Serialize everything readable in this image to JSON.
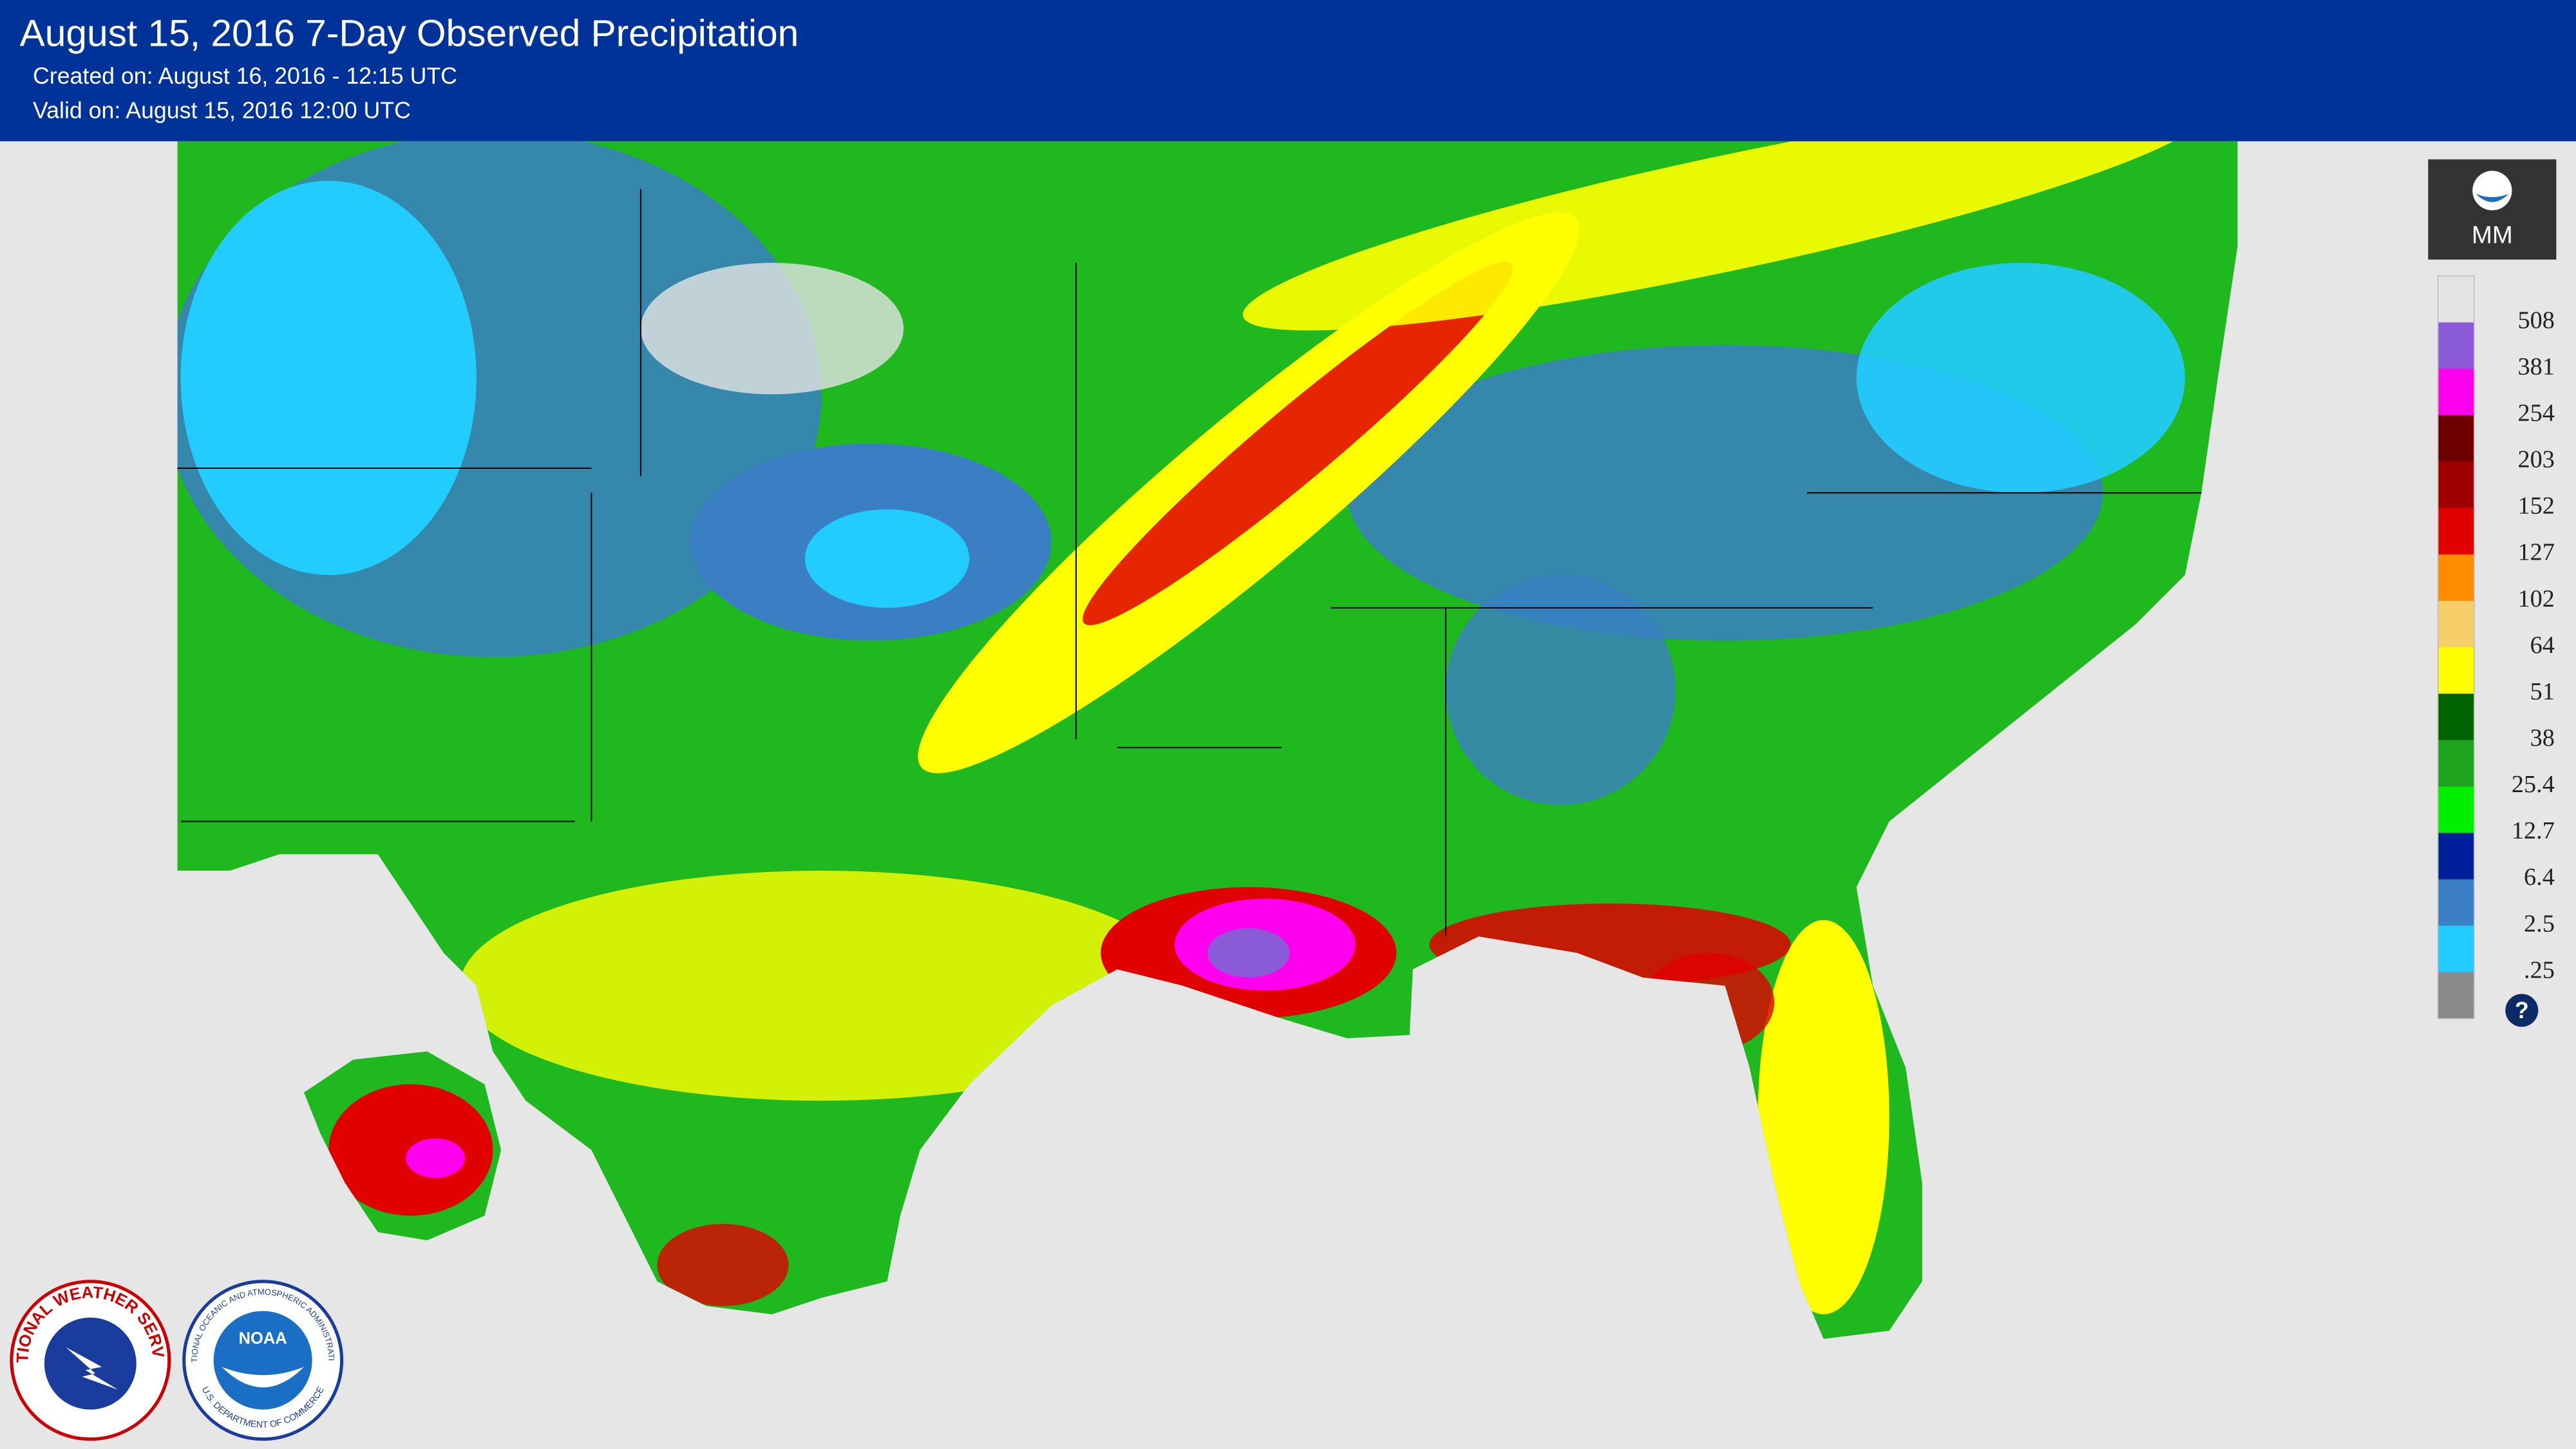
{
  "header": {
    "title": "August 15, 2016 7-Day Observed Precipitation",
    "created": "Created on: August 16, 2016 - 12:15 UTC",
    "valid": "Valid on: August 15, 2016 12:00 UTC"
  },
  "legend": {
    "unit": "MM",
    "labels": [
      "508",
      "381",
      "254",
      "203",
      "152",
      "127",
      "102",
      "64",
      "51",
      "38",
      "25.4",
      "12.7",
      "6.4",
      "2.5",
      ".25"
    ],
    "colors": [
      "#e4e4e4",
      "#8b5ad6",
      "#ff00ee",
      "#6e0000",
      "#a00000",
      "#e00000",
      "#ff8c00",
      "#f7cf6a",
      "#ffff00",
      "#006400",
      "#1fa31f",
      "#00ee00",
      "#001f9a",
      "#3a7fc4",
      "#22ccff",
      "#8a8a8a"
    ],
    "help": "?"
  },
  "logos": {
    "nws": "NATIONAL WEATHER SERVICE",
    "noaa": "NOAA",
    "noaa_ring": "NATIONAL OCEANIC AND ATMOSPHERIC ADMINISTRATION",
    "commerce": "U.S. DEPARTMENT OF COMMERCE"
  }
}
